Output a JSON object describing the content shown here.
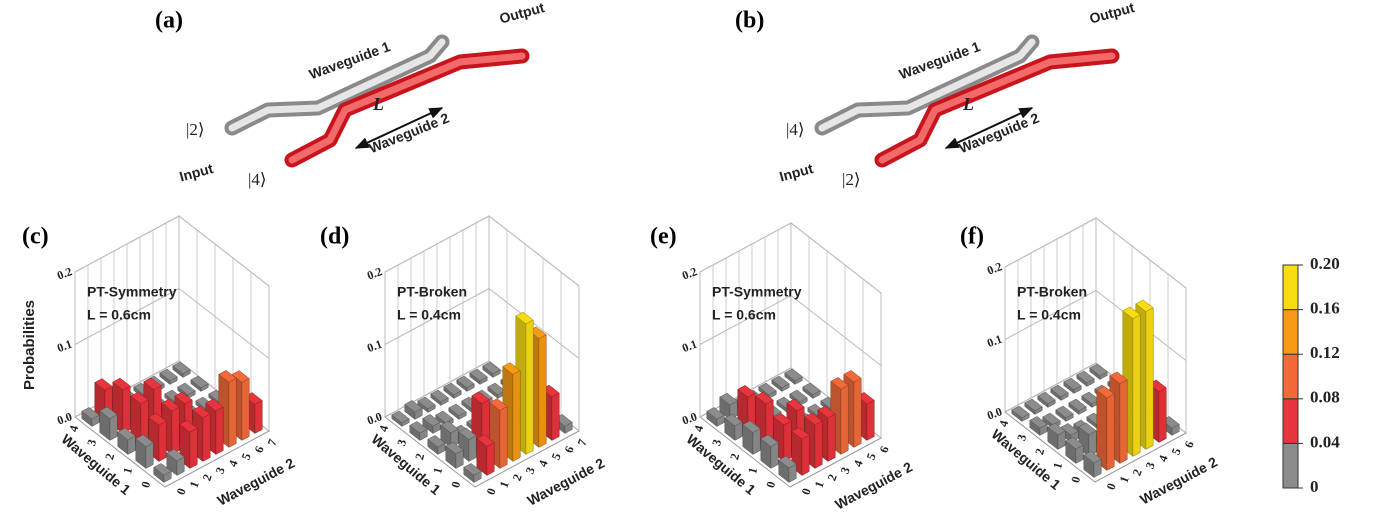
{
  "diagrams": [
    {
      "panel": "(a)",
      "waveguide1": "Waveguide 1",
      "waveguide2": "Waveguide 2",
      "length": "L",
      "output": "Output",
      "input": "Input",
      "state_upper": "|2⟩",
      "state_lower": "|4⟩"
    },
    {
      "panel": "(b)",
      "waveguide1": "Waveguide 1",
      "waveguide2": "Waveguide 2",
      "length": "L",
      "output": "Output",
      "input": "Input",
      "state_upper": "|4⟩",
      "state_lower": "|2⟩"
    }
  ],
  "colorbar": {
    "ticks": [
      0,
      0.04,
      0.08,
      0.12,
      0.16,
      {
        "value": 0.2,
        "label": "0.20"
      }
    ],
    "colors": [
      "#8c8c8c",
      "#e8343c",
      "#f26a3a",
      "#f59a12",
      "#f7dc12"
    ]
  },
  "chart_data": [
    {
      "type": "bar3d",
      "panel": "(c)",
      "annotation": [
        "PT-Symmetry",
        "L = 0.6cm"
      ],
      "zlabel": "Probabilities",
      "x_title": "Waveguide 2",
      "y_title": "Waveguide 1",
      "x_categories": [
        0,
        1,
        2,
        3,
        4,
        5,
        6,
        7
      ],
      "y_categories": [
        0,
        1,
        2,
        3,
        4
      ],
      "zlim": [
        0,
        0.2
      ],
      "zticks": [
        {
          "value": 0,
          "label": "0.0"
        },
        0.1,
        0.2
      ],
      "values": [
        [
          0.01,
          0.02,
          0.05,
          0.06,
          0.06,
          0.09,
          0.08,
          0.04
        ],
        [
          0.03,
          0.05,
          0.06,
          0.06,
          0.005,
          0.005,
          0.005,
          0.005
        ],
        [
          0.02,
          0.06,
          0.07,
          0.005,
          0.005,
          0.005,
          0.005,
          0.005
        ],
        [
          0.03,
          0.06,
          0.005,
          0.005,
          0.005,
          0.005,
          0.005,
          0.005
        ],
        [
          0.01,
          0.04,
          0.005,
          0.005,
          0.005,
          0.005,
          0.005,
          0.005
        ]
      ]
    },
    {
      "type": "bar3d",
      "panel": "(d)",
      "annotation": [
        "PT-Broken",
        "L = 0.4cm"
      ],
      "x_title": "Waveguide 2",
      "y_title": "Waveguide 1",
      "x_categories": [
        0,
        1,
        2,
        3,
        4,
        5,
        6,
        7
      ],
      "y_categories": [
        0,
        1,
        2,
        3,
        4
      ],
      "zlim": [
        0,
        0.2
      ],
      "zticks": [
        {
          "value": 0,
          "label": "0.0"
        },
        0.1,
        0.2
      ],
      "values": [
        [
          0.01,
          0.04,
          0.08,
          0.12,
          0.18,
          0.15,
          0.06,
          0.01
        ],
        [
          0.02,
          0.03,
          0.07,
          0.005,
          0.005,
          0.005,
          0.005,
          0.005
        ],
        [
          0.01,
          0.02,
          0.005,
          0.005,
          0.005,
          0.005,
          0.005,
          0.005
        ],
        [
          0.01,
          0.01,
          0.005,
          0.005,
          0.005,
          0.005,
          0.005,
          0.005
        ],
        [
          0.005,
          0.01,
          0.005,
          0.005,
          0.005,
          0.005,
          0.005,
          0.005
        ]
      ]
    },
    {
      "type": "bar3d",
      "panel": "(e)",
      "annotation": [
        "PT-Symmetry",
        "L = 0.6cm"
      ],
      "x_title": "Waveguide 2",
      "y_title": "Waveguide 1",
      "x_categories": [
        0,
        1,
        2,
        3,
        4,
        5,
        6
      ],
      "y_categories": [
        0,
        1,
        2,
        3,
        4
      ],
      "zlim": [
        0,
        0.2
      ],
      "zticks": [
        {
          "value": 0,
          "label": "0.0"
        },
        0.1,
        0.2
      ],
      "values": [
        [
          0.02,
          0.05,
          0.06,
          0.06,
          0.09,
          0.09,
          0.05
        ],
        [
          0.03,
          0.05,
          0.06,
          0.03,
          0.005,
          0.005,
          0.005
        ],
        [
          0.03,
          0.06,
          0.005,
          0.005,
          0.005,
          0.005,
          0.005
        ],
        [
          0.02,
          0.05,
          0.005,
          0.005,
          0.005,
          0.005,
          0.005
        ],
        [
          0.01,
          0.02,
          0.005,
          0.005,
          0.005,
          0.005,
          0.005
        ]
      ]
    },
    {
      "type": "bar3d",
      "panel": "(f)",
      "annotation": [
        "PT-Broken",
        "L = 0.4cm"
      ],
      "x_title": "Waveguide 2",
      "y_title": "Waveguide 1",
      "x_categories": [
        0,
        1,
        2,
        3,
        4,
        5,
        6
      ],
      "y_categories": [
        0,
        1,
        2,
        3,
        4
      ],
      "zlim": [
        0,
        0.2
      ],
      "zticks": [
        {
          "value": 0,
          "label": "0.0"
        },
        0.1,
        0.2
      ],
      "values": [
        [
          0.02,
          0.1,
          0.11,
          0.19,
          0.19,
          0.07,
          0.01
        ],
        [
          0.02,
          0.03,
          0.005,
          0.005,
          0.005,
          0.005,
          0.005
        ],
        [
          0.02,
          0.01,
          0.005,
          0.005,
          0.005,
          0.005,
          0.005
        ],
        [
          0.01,
          0.005,
          0.005,
          0.005,
          0.005,
          0.005,
          0.005
        ],
        [
          0.005,
          0.005,
          0.005,
          0.005,
          0.005,
          0.005,
          0.005
        ]
      ]
    }
  ]
}
